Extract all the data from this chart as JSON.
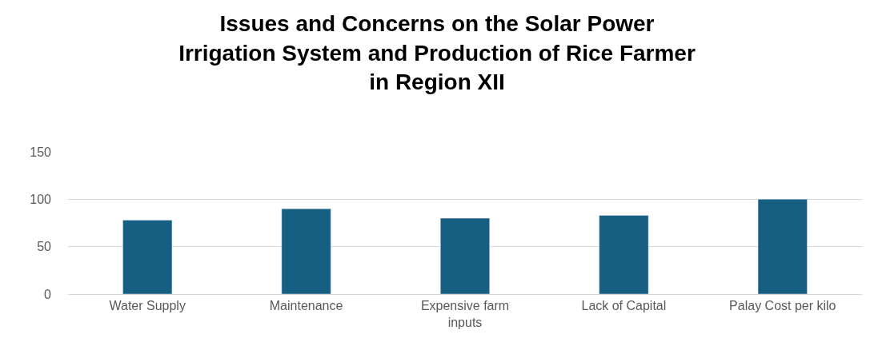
{
  "chart_data": {
    "type": "bar",
    "title": "Issues and Concerns on the Solar Power\nIrrigation System and Production of Rice Farmer\nin Region XII",
    "categories": [
      "Water Supply",
      "Maintenance",
      "Expensive farm\ninputs",
      "Lack of Capital",
      "Palay Cost per kilo"
    ],
    "values": [
      78,
      90,
      80,
      83,
      100
    ],
    "color": "#175f82",
    "ylim": [
      0,
      150
    ],
    "yticks": [
      0,
      50,
      100,
      150
    ],
    "grid": "y",
    "legend": false
  }
}
